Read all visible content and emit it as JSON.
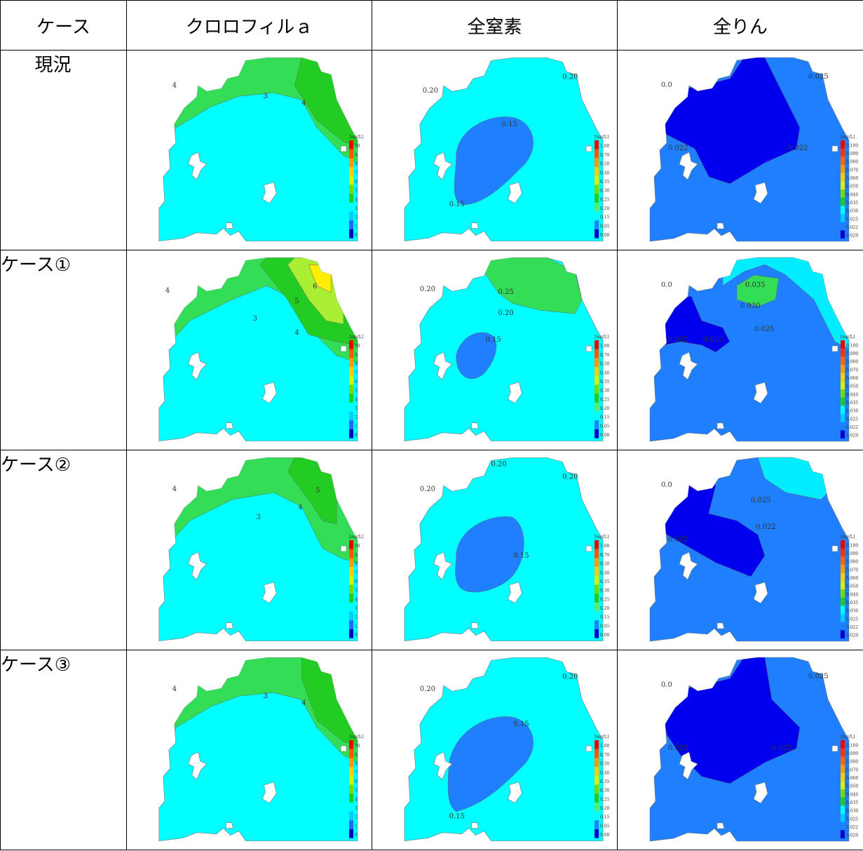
{
  "header": {
    "case_col": "ケース",
    "chl_col": "クロロフィルａ",
    "tn_col": "全窒素",
    "tp_col": "全りん"
  },
  "legend_unit": "[mg/L]",
  "legends": {
    "chl": [
      "10",
      "9",
      "8",
      "7",
      "6",
      "5",
      "4",
      "3",
      "2",
      "1",
      "0"
    ],
    "tn": [
      "1.00",
      "0.70",
      "0.50",
      "0.40",
      "0.35",
      "0.30",
      "0.25",
      "0.20",
      "0.15",
      "0.05",
      "0.00"
    ],
    "tp": [
      "0.100",
      "0.090",
      "0.080",
      "0.070",
      "0.060",
      "0.050",
      "0.040",
      "0.035",
      "0.030",
      "0.025",
      "0.022",
      "0.020"
    ]
  },
  "colors": {
    "cyan": "#00ffff",
    "green": "#33dd55",
    "darkgreen": "#22cc22",
    "yellowgreen": "#aaee33",
    "yellow": "#ffee00",
    "mid_blue": "#1e7fff",
    "deep_blue": "#0000ee",
    "light_cyan": "#00eeff"
  },
  "rows": [
    {
      "case": "現況",
      "chl_labels": [
        "4",
        "3",
        "4"
      ],
      "tn_labels": [
        "0.20",
        "0.20",
        "0.15",
        "0.15"
      ],
      "tp_labels": [
        "0.0",
        "0.025",
        "0.022",
        "0.022"
      ]
    },
    {
      "case": "ケース①",
      "chl_labels": [
        "4",
        "3",
        "4",
        "5",
        "6"
      ],
      "tn_labels": [
        "0.20",
        "0.25",
        "0.20",
        "0.15"
      ],
      "tp_labels": [
        "0.0",
        "0.035",
        "0.030",
        "0.025",
        "0.022",
        "0.022"
      ]
    },
    {
      "case": "ケース②",
      "chl_labels": [
        "4",
        "3",
        "4",
        "5"
      ],
      "tn_labels": [
        "0.20",
        "0.20",
        "0.20",
        "0.15"
      ],
      "tp_labels": [
        "0.0",
        "0.025",
        "0.022",
        "0.022"
      ]
    },
    {
      "case": "ケース③",
      "chl_labels": [
        "4",
        "3",
        "4"
      ],
      "tn_labels": [
        "0.20",
        "0.20",
        "0.15",
        "0.15"
      ],
      "tp_labels": [
        "0.0",
        "0.025",
        "0.022",
        "0.023"
      ]
    }
  ]
}
